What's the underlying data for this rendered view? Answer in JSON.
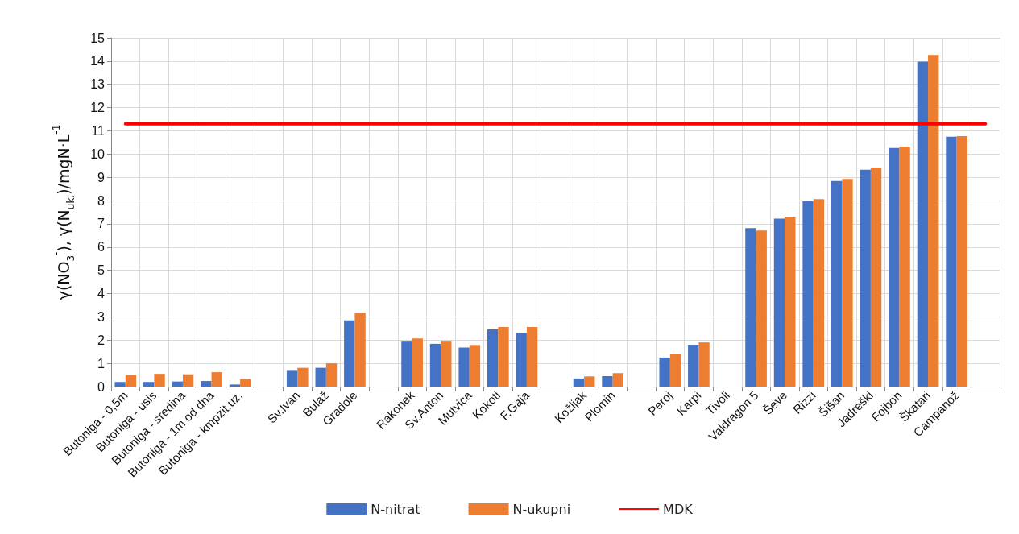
{
  "chart_data": {
    "type": "bar",
    "ylabel": "γ(NO$_{3}$$^{-}$), γ(N$_{uk.}$)/mgN·L$^{-1}$",
    "categories": [
      "Butoniga - 0,5m",
      "Butoniga - usis",
      "Butoniga - sredina",
      "Butoniga - 1m od dna",
      "Butoniga - kmpzit.uz.",
      null,
      "Sv.Ivan",
      "Bulaž",
      "Gradole",
      null,
      "Rakonek",
      "Sv.Anton",
      "Mutvica",
      "Kokoti",
      "F.Gaja",
      null,
      "Kožljak",
      "Plomin",
      null,
      "Peroj",
      "Karpi",
      "Tivoli",
      "Valdragon 5",
      "Ševe",
      "Rizzi",
      "Šišan",
      "Jadreški",
      "Fojbon",
      "Škatari",
      "Campanož",
      null
    ],
    "series": [
      {
        "name": "N-nitrat",
        "color": "#4472c4",
        "values": [
          0.2,
          0.2,
          0.22,
          0.24,
          0.09,
          null,
          0.68,
          0.81,
          2.85,
          null,
          1.97,
          1.84,
          1.68,
          2.46,
          2.3,
          null,
          0.35,
          0.45,
          null,
          1.25,
          1.8,
          null,
          6.82,
          7.22,
          7.97,
          8.84,
          9.33,
          10.26,
          13.98,
          10.75,
          null
        ]
      },
      {
        "name": "N-ukupni",
        "color": "#ed7d31",
        "values": [
          0.5,
          0.55,
          0.53,
          0.62,
          0.33,
          null,
          0.81,
          1.0,
          3.17,
          null,
          2.07,
          1.97,
          1.79,
          2.56,
          2.56,
          null,
          0.44,
          0.58,
          null,
          1.4,
          1.9,
          null,
          6.71,
          7.3,
          8.06,
          8.93,
          9.42,
          10.32,
          14.26,
          10.77,
          null
        ]
      },
      {
        "name": "MDK",
        "type": "line",
        "color": "#ff0000",
        "values": [
          11.3,
          11.3,
          11.3,
          11.3,
          11.3,
          11.3,
          11.3,
          11.3,
          11.3,
          11.3,
          11.3,
          11.3,
          11.3,
          11.3,
          11.3,
          11.3,
          11.3,
          11.3,
          11.3,
          11.3,
          11.3,
          11.3,
          11.3,
          11.3,
          11.3,
          11.3,
          11.3,
          11.3,
          11.3,
          11.3,
          11.3
        ]
      }
    ],
    "ylim": [
      0,
      15
    ],
    "yticks": [
      0,
      1,
      2,
      3,
      4,
      5,
      6,
      7,
      8,
      9,
      10,
      11,
      12,
      13,
      14,
      15
    ],
    "grid": true,
    "legend": "bottom",
    "marker": "none"
  }
}
